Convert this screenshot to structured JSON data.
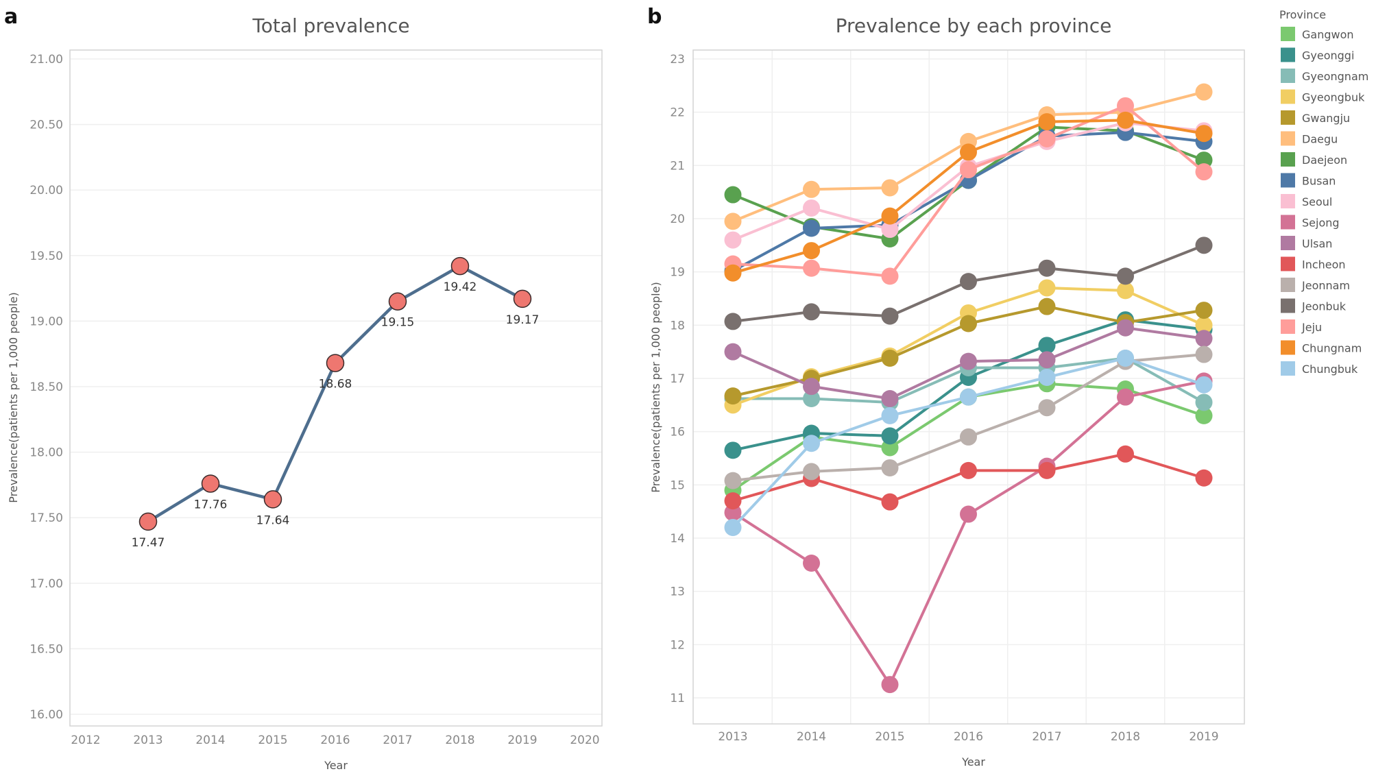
{
  "chart_data": [
    {
      "panel": "a",
      "type": "line",
      "title": "Total prevalence",
      "xlabel": "Year",
      "ylabel": "Prevalence(patients per 1,000 people)",
      "x_ticks": [
        "2012",
        "2013",
        "2014",
        "2015",
        "2016",
        "2017",
        "2018",
        "2019",
        "2020"
      ],
      "xlim": [
        2012,
        2020
      ],
      "y_ticks": [
        "16.00",
        "16.50",
        "17.00",
        "17.50",
        "18.00",
        "18.50",
        "19.00",
        "19.50",
        "20.00",
        "20.50",
        "21.00"
      ],
      "ylim": [
        16,
        21
      ],
      "grid": "horizontal",
      "line_color": "#4E6E8E",
      "marker_color": "#EE7770",
      "x": [
        2013,
        2014,
        2015,
        2016,
        2017,
        2018,
        2019
      ],
      "values": [
        17.47,
        17.76,
        17.64,
        18.68,
        19.15,
        19.42,
        19.17
      ],
      "data_labels": [
        "17.47",
        "17.76",
        "17.64",
        "18.68",
        "19.15",
        "19.42",
        "19.17"
      ]
    },
    {
      "panel": "b",
      "type": "line",
      "title": "Prevalence by each province",
      "xlabel": "Year",
      "ylabel": "Prevalence(patients per 1,000 people)",
      "x": [
        2013,
        2014,
        2015,
        2016,
        2017,
        2018,
        2019
      ],
      "x_ticks": [
        "2013",
        "2014",
        "2015",
        "2016",
        "2017",
        "2018",
        "2019"
      ],
      "y_ticks": [
        "11",
        "12",
        "13",
        "14",
        "15",
        "16",
        "17",
        "18",
        "19",
        "20",
        "21",
        "22",
        "23"
      ],
      "ylim": [
        11,
        23
      ],
      "grid": "both",
      "legend_title": "Province",
      "legend_position": "right",
      "series": [
        {
          "name": "Gangwon",
          "color": "#7BC96F",
          "values": [
            14.9,
            15.9,
            15.7,
            16.65,
            16.9,
            16.8,
            16.3
          ]
        },
        {
          "name": "Gyeonggi",
          "color": "#3A918C",
          "values": [
            15.65,
            15.97,
            15.92,
            17.02,
            17.62,
            18.1,
            17.92
          ]
        },
        {
          "name": "Gyeongnam",
          "color": "#86BCB6",
          "values": [
            16.62,
            16.62,
            16.55,
            17.2,
            17.2,
            17.38,
            16.55
          ]
        },
        {
          "name": "Gyeongbuk",
          "color": "#F1CE63",
          "values": [
            16.5,
            17.03,
            17.42,
            18.23,
            18.7,
            18.65,
            18.0
          ]
        },
        {
          "name": "Gwangju",
          "color": "#B6992D",
          "values": [
            16.67,
            17.0,
            17.38,
            18.03,
            18.35,
            18.05,
            18.28
          ]
        },
        {
          "name": "Daegu",
          "color": "#FFBE7D",
          "values": [
            19.95,
            20.55,
            20.58,
            21.45,
            21.95,
            22.0,
            22.38
          ]
        },
        {
          "name": "Daejeon",
          "color": "#59A14F",
          "values": [
            20.45,
            19.85,
            19.62,
            20.72,
            21.72,
            21.65,
            21.1
          ]
        },
        {
          "name": "Busan",
          "color": "#4E79A7",
          "values": [
            19.02,
            19.82,
            19.88,
            20.72,
            21.55,
            21.62,
            21.45
          ]
        },
        {
          "name": "Seoul",
          "color": "#FABFD2",
          "values": [
            19.6,
            20.2,
            19.8,
            20.98,
            21.45,
            21.8,
            21.65
          ]
        },
        {
          "name": "Sejong",
          "color": "#D37295",
          "values": [
            14.48,
            13.53,
            11.25,
            14.45,
            15.35,
            16.65,
            16.95
          ]
        },
        {
          "name": "Ulsan",
          "color": "#B07AA1",
          "values": [
            17.5,
            16.85,
            16.62,
            17.32,
            17.35,
            17.95,
            17.75
          ]
        },
        {
          "name": "Incheon",
          "color": "#E15759",
          "values": [
            14.7,
            15.12,
            14.68,
            15.27,
            15.27,
            15.58,
            15.13
          ]
        },
        {
          "name": "Jeonnam",
          "color": "#BAB0AC",
          "values": [
            15.08,
            15.25,
            15.32,
            15.9,
            16.45,
            17.32,
            17.45
          ]
        },
        {
          "name": "Jeonbuk",
          "color": "#79706E",
          "values": [
            18.07,
            18.25,
            18.17,
            18.82,
            19.07,
            18.92,
            19.5
          ]
        },
        {
          "name": "Jeju",
          "color": "#FF9D9A",
          "values": [
            19.15,
            19.07,
            18.92,
            20.92,
            21.5,
            22.12,
            20.88
          ]
        },
        {
          "name": "Chungnam",
          "color": "#F28E2B",
          "values": [
            18.98,
            19.4,
            20.05,
            21.25,
            21.82,
            21.85,
            21.6
          ]
        },
        {
          "name": "Chungbuk",
          "color": "#A0CBE8",
          "values": [
            14.2,
            15.78,
            16.3,
            16.65,
            17.02,
            17.38,
            16.88
          ]
        }
      ]
    }
  ],
  "panels": {
    "a_letter": "a",
    "b_letter": "b"
  }
}
